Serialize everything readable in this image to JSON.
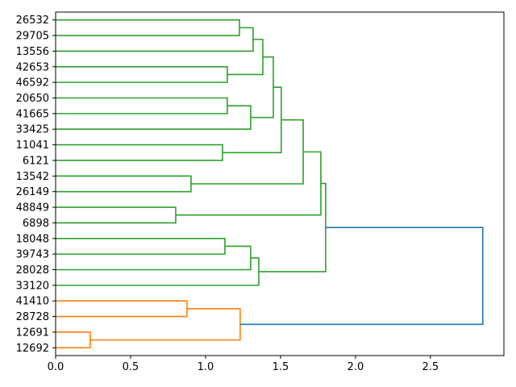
{
  "chart_data": {
    "type": "dendrogram",
    "orientation": "left",
    "title": "",
    "xlabel": "",
    "ylabel": "",
    "xlim": [
      0,
      2.99
    ],
    "xticks": [
      0.0,
      0.5,
      1.0,
      1.5,
      2.0,
      2.5
    ],
    "xtick_labels": [
      "0.0",
      "0.5",
      "1.0",
      "1.5",
      "2.0",
      "2.5"
    ],
    "grid": false,
    "colors": {
      "cluster1": "#2ca02c",
      "cluster2": "#ff7f0e",
      "root": "#1f77b4"
    },
    "leaves": [
      "26532",
      "29705",
      "13556",
      "42653",
      "46592",
      "20650",
      "41665",
      "33425",
      "11041",
      "6121",
      "13542",
      "26149",
      "48849",
      "6898",
      "18048",
      "39743",
      "28028",
      "33120",
      "41410",
      "28728",
      "12691",
      "12692"
    ],
    "links": [
      {
        "id": "L0",
        "a": "26532",
        "b": "29705",
        "height": 1.226,
        "color": "#2ca02c"
      },
      {
        "id": "L1",
        "a": "L0",
        "b": "13556",
        "height": 1.317,
        "color": "#2ca02c"
      },
      {
        "id": "L2",
        "a": "42653",
        "b": "46592",
        "height": 1.145,
        "color": "#2ca02c"
      },
      {
        "id": "L3",
        "a": "L1",
        "b": "L2",
        "height": 1.382,
        "color": "#2ca02c"
      },
      {
        "id": "L4",
        "a": "20650",
        "b": "41665",
        "height": 1.145,
        "color": "#2ca02c"
      },
      {
        "id": "L5",
        "a": "L4",
        "b": "33425",
        "height": 1.301,
        "color": "#2ca02c"
      },
      {
        "id": "L6",
        "a": "L3",
        "b": "L5",
        "height": 1.452,
        "color": "#2ca02c"
      },
      {
        "id": "L7",
        "a": "11041",
        "b": "6121",
        "height": 1.113,
        "color": "#2ca02c"
      },
      {
        "id": "L8",
        "a": "L6",
        "b": "L7",
        "height": 1.505,
        "color": "#2ca02c"
      },
      {
        "id": "L9",
        "a": "13542",
        "b": "26149",
        "height": 0.903,
        "color": "#2ca02c"
      },
      {
        "id": "L10",
        "a": "L8",
        "b": "L9",
        "height": 1.651,
        "color": "#2ca02c"
      },
      {
        "id": "L11",
        "a": "48849",
        "b": "6898",
        "height": 0.801,
        "color": "#2ca02c"
      },
      {
        "id": "L12",
        "a": "L10",
        "b": "L11",
        "height": 1.769,
        "color": "#2ca02c"
      },
      {
        "id": "L13",
        "a": "18048",
        "b": "39743",
        "height": 1.129,
        "color": "#2ca02c"
      },
      {
        "id": "L14",
        "a": "L13",
        "b": "28028",
        "height": 1.301,
        "color": "#2ca02c"
      },
      {
        "id": "L15",
        "a": "L14",
        "b": "33120",
        "height": 1.355,
        "color": "#2ca02c"
      },
      {
        "id": "L16",
        "a": "L12",
        "b": "L15",
        "height": 1.801,
        "color": "#2ca02c"
      },
      {
        "id": "L17",
        "a": "41410",
        "b": "28728",
        "height": 0.876,
        "color": "#ff7f0e"
      },
      {
        "id": "L18",
        "a": "12691",
        "b": "12692",
        "height": 0.231,
        "color": "#ff7f0e"
      },
      {
        "id": "L19",
        "a": "L17",
        "b": "L18",
        "height": 1.231,
        "color": "#ff7f0e"
      },
      {
        "id": "L20",
        "a": "L16",
        "b": "L19",
        "height": 2.849,
        "color": "#1f77b4"
      }
    ]
  }
}
